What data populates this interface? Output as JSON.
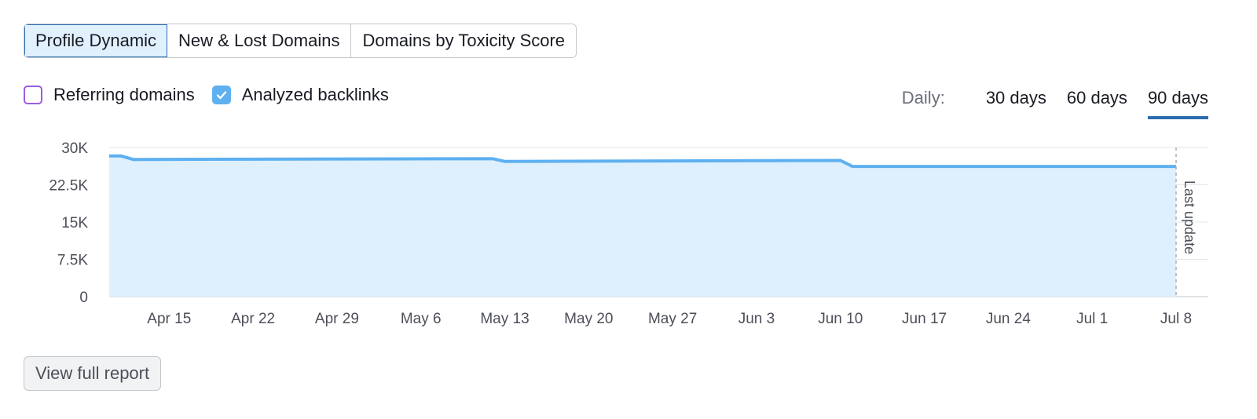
{
  "tabs": [
    {
      "label": "Profile Dynamic",
      "active": true
    },
    {
      "label": "New & Lost Domains",
      "active": false
    },
    {
      "label": "Domains by Toxicity Score",
      "active": false
    }
  ],
  "toggles": {
    "referring_domains": {
      "label": "Referring domains",
      "checked": false
    },
    "analyzed_backlinks": {
      "label": "Analyzed backlinks",
      "checked": true
    }
  },
  "periods": {
    "caption": "Daily:",
    "options": [
      {
        "label": "30 days",
        "active": false
      },
      {
        "label": "60 days",
        "active": false
      },
      {
        "label": "90 days",
        "active": true
      }
    ]
  },
  "chart_data": {
    "type": "area",
    "y_ticks": [
      "0",
      "7.5K",
      "15K",
      "22.5K",
      "30K"
    ],
    "ylim": [
      0,
      30000
    ],
    "x_ticks": [
      "Apr 15",
      "Apr 22",
      "Apr 29",
      "May 6",
      "May 13",
      "May 20",
      "May 27",
      "Jun 3",
      "Jun 10",
      "Jun 17",
      "Jun 24",
      "Jul 1",
      "Jul 8"
    ],
    "x_start": "Apr 10",
    "x_end": "Jul 8",
    "grid": true,
    "marker_label": "Last update",
    "series": [
      {
        "name": "Analyzed backlinks",
        "color": "#5eb0f0",
        "fill": "#def0fd",
        "points": [
          [
            "Apr 10",
            28300
          ],
          [
            "Apr 11",
            28300
          ],
          [
            "Apr 12",
            27600
          ],
          [
            "May 12",
            27750
          ],
          [
            "May 13",
            27200
          ],
          [
            "Jun 10",
            27400
          ],
          [
            "Jun 11",
            26200
          ],
          [
            "Jul 8",
            26200
          ]
        ]
      }
    ]
  },
  "footer": {
    "button_label": "View full report"
  }
}
